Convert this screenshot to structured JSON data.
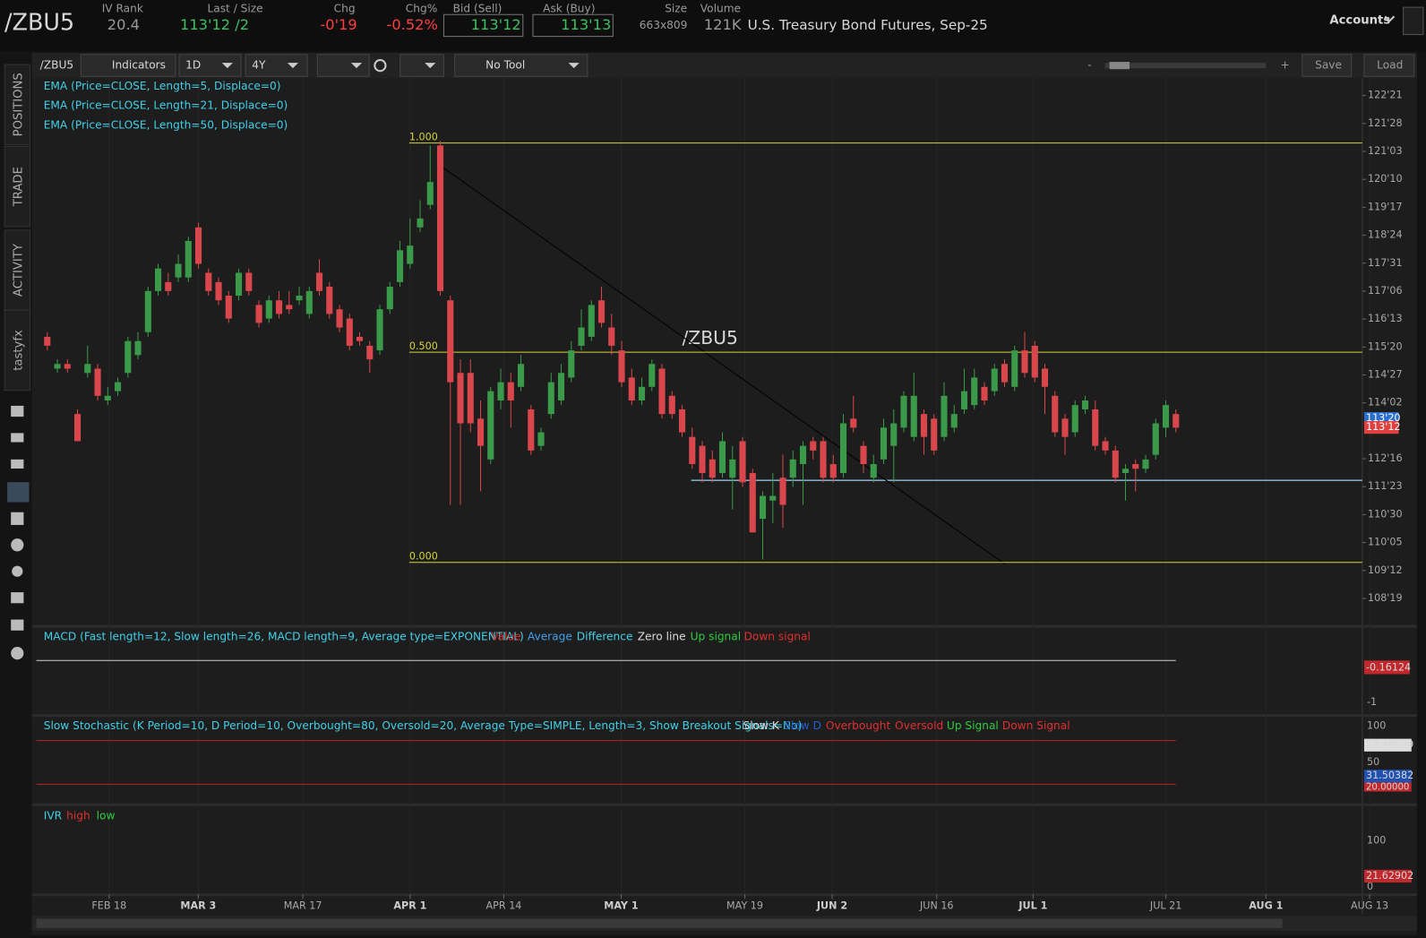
{
  "header": {
    "symbol": "/ZBU5",
    "fields": [
      {
        "label": "IV Rank",
        "value": "20.4"
      },
      {
        "label": "Last / Size",
        "value": "113'12 /2"
      },
      {
        "label": "Chg",
        "value": "-0'19"
      },
      {
        "label": "Chg%",
        "value": "-0.52%"
      },
      {
        "label": "Bid (Sell)",
        "value": "113'12"
      },
      {
        "label": "Ask (Buy)",
        "value": "113'13"
      },
      {
        "label": "Size",
        "value": "663x809"
      },
      {
        "label": "Volume",
        "value": "121K"
      }
    ],
    "description": "U.S. Treasury Bond Futures, Sep-25",
    "accounts": "Accounts"
  },
  "toolbar": {
    "symbol": "/ZBU5",
    "indicators": "Indicators",
    "aggregation": "1D",
    "period": "4Y",
    "drawing_tool": "No Tool",
    "zoom_out": "-",
    "zoom_in": "+",
    "save": "Save",
    "load": "Load"
  },
  "sidebar": {
    "tabs": [
      "POSITIONS",
      "TRADE",
      "ACTIVITY",
      "tastyfx"
    ]
  },
  "chart_data": {
    "type": "candlestick",
    "watermark": "/ZBU5",
    "studies": [
      "EMA (Price=CLOSE, Length=5, Displace=0)",
      "EMA (Price=CLOSE, Length=21, Displace=0)",
      "EMA (Price=CLOSE, Length=50, Displace=0)"
    ],
    "up_color": "#3a9a4a",
    "down_color": "#d9474c",
    "ylim": [
      107.9,
      123.09
    ],
    "yticks": [
      {
        "value": 122.65625,
        "label": "122'21"
      },
      {
        "value": 121.875,
        "label": "121'28"
      },
      {
        "value": 121.09375,
        "label": "121'03"
      },
      {
        "value": 120.3125,
        "label": "120'10"
      },
      {
        "value": 119.53125,
        "label": "119'17"
      },
      {
        "value": 118.75,
        "label": "118'24"
      },
      {
        "value": 117.96875,
        "label": "117'31"
      },
      {
        "value": 117.1875,
        "label": "117'06"
      },
      {
        "value": 116.40625,
        "label": "116'13"
      },
      {
        "value": 115.625,
        "label": "115'20"
      },
      {
        "value": 114.84375,
        "label": "114'27"
      },
      {
        "value": 114.0625,
        "label": "114'02"
      },
      {
        "value": 112.5,
        "label": "112'16"
      },
      {
        "value": 111.71875,
        "label": "111'23"
      },
      {
        "value": 110.9375,
        "label": "110'30"
      },
      {
        "value": 110.15625,
        "label": "110'05"
      },
      {
        "value": 109.375,
        "label": "109'12"
      },
      {
        "value": 108.59375,
        "label": "108'19"
      }
    ],
    "x_labels": [
      "FEB 18",
      "MAR 3",
      "MAR 17",
      "APR 1",
      "APR 14",
      "MAY 1",
      "MAY 19",
      "JUN 2",
      "JUN 16",
      "JUL 1",
      "JUL 21",
      "AUG 1",
      "AUG 13"
    ],
    "fib_levels": [
      {
        "label": "1.000",
        "price": 121.33
      },
      {
        "label": "0.500",
        "price": 115.48
      },
      {
        "label": "0.000",
        "price": 109.6
      }
    ],
    "last_badges": [
      {
        "value": 113.625,
        "label": "113'20"
      },
      {
        "value": 113.375,
        "label": "113'12"
      }
    ],
    "ohlc": [
      [
        115.91,
        116.04,
        115.53,
        115.66
      ],
      [
        115.02,
        115.28,
        114.9,
        115.15
      ],
      [
        115.15,
        115.28,
        114.9,
        115.02
      ],
      [
        113.75,
        113.88,
        112.99,
        112.99
      ],
      [
        114.9,
        115.66,
        114.77,
        115.15
      ],
      [
        115.02,
        115.15,
        114.13,
        114.26
      ],
      [
        114.13,
        114.51,
        114.0,
        114.26
      ],
      [
        114.39,
        114.77,
        114.26,
        114.64
      ],
      [
        114.9,
        115.91,
        114.77,
        115.79
      ],
      [
        115.4,
        116.04,
        115.28,
        115.79
      ],
      [
        116.04,
        117.31,
        115.91,
        117.19
      ],
      [
        117.19,
        117.95,
        117.06,
        117.82
      ],
      [
        117.44,
        117.7,
        117.06,
        117.19
      ],
      [
        117.57,
        118.21,
        117.44,
        117.95
      ],
      [
        117.57,
        118.71,
        117.44,
        118.59
      ],
      [
        118.97,
        119.1,
        117.82,
        117.95
      ],
      [
        117.7,
        117.82,
        117.06,
        117.19
      ],
      [
        117.44,
        117.57,
        116.8,
        116.93
      ],
      [
        117.06,
        117.19,
        116.3,
        116.42
      ],
      [
        117.06,
        117.82,
        116.93,
        117.7
      ],
      [
        117.7,
        117.82,
        117.06,
        117.19
      ],
      [
        116.8,
        116.93,
        116.17,
        116.3
      ],
      [
        116.42,
        117.06,
        116.3,
        116.93
      ],
      [
        116.93,
        117.19,
        116.42,
        116.55
      ],
      [
        116.8,
        117.19,
        116.55,
        116.68
      ],
      [
        116.93,
        117.31,
        116.8,
        117.06
      ],
      [
        116.55,
        117.31,
        116.42,
        117.19
      ],
      [
        117.7,
        118.08,
        117.06,
        117.19
      ],
      [
        117.31,
        117.44,
        116.42,
        116.55
      ],
      [
        116.68,
        116.8,
        116.04,
        116.17
      ],
      [
        116.42,
        116.55,
        115.53,
        115.66
      ],
      [
        115.91,
        116.04,
        115.66,
        115.79
      ],
      [
        115.66,
        115.79,
        114.9,
        115.28
      ],
      [
        115.53,
        116.8,
        115.4,
        116.68
      ],
      [
        116.68,
        117.44,
        116.55,
        117.31
      ],
      [
        117.44,
        118.59,
        117.31,
        118.33
      ],
      [
        117.95,
        119.22,
        117.82,
        118.46
      ],
      [
        118.97,
        119.73,
        118.84,
        119.22
      ],
      [
        119.6,
        121.26,
        119.48,
        120.24
      ],
      [
        121.26,
        121.39,
        117.06,
        117.19
      ],
      [
        116.93,
        117.06,
        111.21,
        114.64
      ],
      [
        114.9,
        115.28,
        111.21,
        113.49
      ],
      [
        114.9,
        115.28,
        113.24,
        113.49
      ],
      [
        113.62,
        114.13,
        111.59,
        112.86
      ],
      [
        112.48,
        114.51,
        112.35,
        114.39
      ],
      [
        114.13,
        115.02,
        113.88,
        114.64
      ],
      [
        114.64,
        114.9,
        113.37,
        114.13
      ],
      [
        114.51,
        115.4,
        114.39,
        115.15
      ],
      [
        113.88,
        114.0,
        112.61,
        112.73
      ],
      [
        112.86,
        113.37,
        112.73,
        113.24
      ],
      [
        113.75,
        114.9,
        113.62,
        114.64
      ],
      [
        114.13,
        115.15,
        114.0,
        114.9
      ],
      [
        114.77,
        115.79,
        114.64,
        115.53
      ],
      [
        115.66,
        116.68,
        115.53,
        116.17
      ],
      [
        115.91,
        116.93,
        115.79,
        116.8
      ],
      [
        116.93,
        117.31,
        116.17,
        116.3
      ],
      [
        116.17,
        116.55,
        115.4,
        115.66
      ],
      [
        115.53,
        115.79,
        114.51,
        114.64
      ],
      [
        114.77,
        115.02,
        114.0,
        114.13
      ],
      [
        114.13,
        114.77,
        114.0,
        114.51
      ],
      [
        114.51,
        115.28,
        114.39,
        115.15
      ],
      [
        115.02,
        115.15,
        113.62,
        113.75
      ],
      [
        114.26,
        114.39,
        113.62,
        113.75
      ],
      [
        113.88,
        114.0,
        113.11,
        113.24
      ],
      [
        113.11,
        113.37,
        112.22,
        112.35
      ],
      [
        112.86,
        112.99,
        111.84,
        112.1
      ],
      [
        112.48,
        112.73,
        111.84,
        111.97
      ],
      [
        112.1,
        113.24,
        111.97,
        112.99
      ],
      [
        111.97,
        112.86,
        111.08,
        112.48
      ],
      [
        112.99,
        113.11,
        111.71,
        111.84
      ],
      [
        112.1,
        112.22,
        110.44,
        110.44
      ],
      [
        110.82,
        111.59,
        109.68,
        111.46
      ],
      [
        111.33,
        112.1,
        110.7,
        111.46
      ],
      [
        111.97,
        112.61,
        110.57,
        111.21
      ],
      [
        111.97,
        112.73,
        111.71,
        112.48
      ],
      [
        112.35,
        112.99,
        111.21,
        112.86
      ],
      [
        112.99,
        113.11,
        112.48,
        112.73
      ],
      [
        112.99,
        113.11,
        111.84,
        111.97
      ],
      [
        112.35,
        112.61,
        111.84,
        111.97
      ],
      [
        112.1,
        113.75,
        111.97,
        113.49
      ],
      [
        113.62,
        114.26,
        113.24,
        113.37
      ],
      [
        112.86,
        112.99,
        112.1,
        112.35
      ],
      [
        111.97,
        112.61,
        111.84,
        112.35
      ],
      [
        112.48,
        113.62,
        112.35,
        113.37
      ],
      [
        112.86,
        113.88,
        111.84,
        113.49
      ],
      [
        113.37,
        114.39,
        113.24,
        114.26
      ],
      [
        113.11,
        114.9,
        112.99,
        114.26
      ],
      [
        113.75,
        113.88,
        112.61,
        113.11
      ],
      [
        113.62,
        113.75,
        112.61,
        112.73
      ],
      [
        113.11,
        114.64,
        112.99,
        114.26
      ],
      [
        113.37,
        114.0,
        113.24,
        113.75
      ],
      [
        113.88,
        115.02,
        113.75,
        114.39
      ],
      [
        114.0,
        115.02,
        113.88,
        114.77
      ],
      [
        114.51,
        114.64,
        114.0,
        114.13
      ],
      [
        114.39,
        115.15,
        114.26,
        115.02
      ],
      [
        115.15,
        115.28,
        114.51,
        114.64
      ],
      [
        114.51,
        115.66,
        114.39,
        115.53
      ],
      [
        115.53,
        116.04,
        114.77,
        114.9
      ],
      [
        115.66,
        115.79,
        114.64,
        114.77
      ],
      [
        115.02,
        115.15,
        113.75,
        114.51
      ],
      [
        114.26,
        114.39,
        113.11,
        113.24
      ],
      [
        113.62,
        113.75,
        112.61,
        113.11
      ],
      [
        113.24,
        114.13,
        113.11,
        114.0
      ],
      [
        113.88,
        114.26,
        113.75,
        114.13
      ],
      [
        113.88,
        114.13,
        112.73,
        112.86
      ],
      [
        112.99,
        113.11,
        112.61,
        112.73
      ],
      [
        112.73,
        112.86,
        111.84,
        111.97
      ],
      [
        112.1,
        112.35,
        111.33,
        112.22
      ],
      [
        112.35,
        112.48,
        111.59,
        112.22
      ],
      [
        112.22,
        112.61,
        112.1,
        112.48
      ],
      [
        112.61,
        113.62,
        112.48,
        113.49
      ],
      [
        113.37,
        114.13,
        113.11,
        114.0
      ],
      [
        113.75,
        113.88,
        113.24,
        113.37
      ]
    ]
  },
  "macd": {
    "title": "MACD (Fast length=12, Slow length=26, MACD length=9, Average type=EXPONENTIAL)",
    "legend": [
      "Value",
      "Average",
      "Difference",
      "Zero line",
      "Up signal",
      "Down signal"
    ],
    "axis_label": "-1",
    "last_value": "-0.16124"
  },
  "stochastic": {
    "title": "Slow Stochastic (K Period=10, D Period=10, Overbought=80, Oversold=20, Average Type=SIMPLE, Length=3, Show Breakout Signals=No)",
    "legend": [
      "Slow K",
      "Slow D",
      "Overbought",
      "Oversold",
      "Up Signal",
      "Down Signal"
    ],
    "axis_labels": [
      "100",
      "50"
    ],
    "badges": [
      "73.46939",
      "31.50382",
      "20.00000"
    ]
  },
  "ivr": {
    "title": "IVR",
    "legend": [
      "high",
      "low"
    ],
    "axis_labels": [
      "100",
      "0"
    ],
    "badge": "21.62902"
  }
}
